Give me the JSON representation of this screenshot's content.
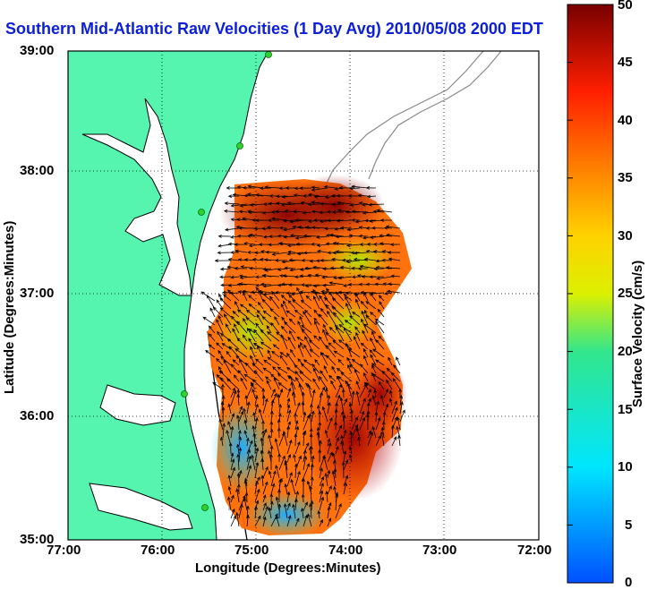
{
  "title": "Southern Mid-Atlantic Raw Velocities (1 Day Avg) 2010/05/08 2000 EDT",
  "axes": {
    "xlabel": "Longitude (Degrees:Minutes)",
    "ylabel": "Latitude (Degrees:Minutes)",
    "xticks": [
      "77:00",
      "76:00",
      "75:00",
      "74:00",
      "73:00",
      "72:00"
    ],
    "yticks": [
      "39:00",
      "38:00",
      "37:00",
      "36:00",
      "35:00"
    ]
  },
  "colorbar": {
    "label": "Surface Velocity (cm/s)",
    "ticks": [
      "50",
      "45",
      "40",
      "35",
      "30",
      "25",
      "20",
      "15",
      "10",
      "5",
      "0"
    ],
    "min": 0,
    "max": 50
  },
  "colors": {
    "land": "#55f5b0",
    "title": "#0b1fd8",
    "coastline": "#000000",
    "bathymetry": "#8a8a8a",
    "station": "#2ed22e"
  }
}
